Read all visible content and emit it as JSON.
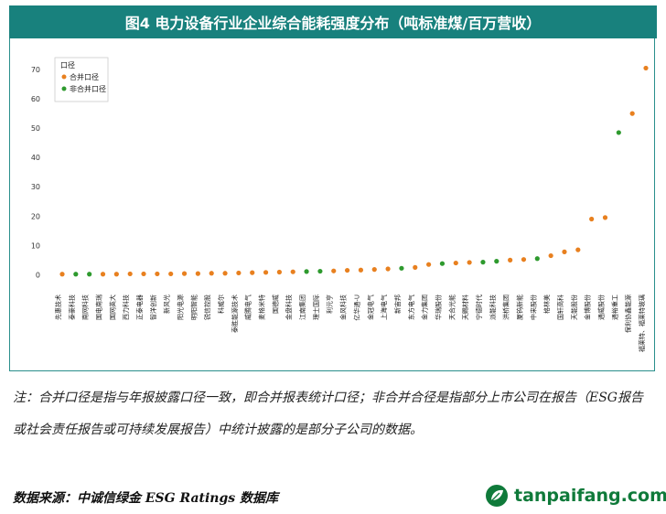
{
  "chart_data": {
    "type": "scatter",
    "title": "图4 电力设备行业企业综合能耗强度分布（吨标准煤/百万营收）",
    "xlabel": "",
    "ylabel": "",
    "ylim": [
      -3,
      75
    ],
    "yticks": [
      0,
      10,
      20,
      30,
      40,
      50,
      60,
      70
    ],
    "legend": {
      "title": "口径",
      "position": "top-left",
      "entries": [
        {
          "name": "合并口径",
          "color": "#e8801f"
        },
        {
          "name": "非合并口径",
          "color": "#2e9a2e"
        }
      ]
    },
    "categories": [
      "先惠技术",
      "泰豪科技",
      "南网科技",
      "国电南瑞",
      "国网英大",
      "西力科技",
      "正泰电器",
      "智洋创新",
      "新风光",
      "阳光电源",
      "明阳智能",
      "锐信控股",
      "科威尔",
      "泰胜能源技术",
      "威腾电气",
      "麦格米特",
      "国德威",
      "金盘科技",
      "江南集团",
      "理士国际",
      "利元亨",
      "金风科技",
      "亿华通-U",
      "金冠电气",
      "上海电气",
      "新宙邦",
      "东方电气",
      "金力集团",
      "华瑞股份",
      "天合光能",
      "天赐材料",
      "宁德时代",
      "派能科技",
      "洪桥集团",
      "厦钨新能",
      "中来股份",
      "格林美",
      "国轩高科",
      "天能股份",
      "金博股份",
      "通威股份",
      "通裕重工",
      "保利协鑫能源",
      "福莱特、福莱特玻璃"
    ],
    "series": [
      {
        "name": "合并口径",
        "points": [
          {
            "x": "先惠技术",
            "y": 0.2
          },
          {
            "x": "国电南瑞",
            "y": 0.2
          },
          {
            "x": "国网英大",
            "y": 0.2
          },
          {
            "x": "西力科技",
            "y": 0.3
          },
          {
            "x": "正泰电器",
            "y": 0.3
          },
          {
            "x": "智洋创新",
            "y": 0.3
          },
          {
            "x": "新风光",
            "y": 0.3
          },
          {
            "x": "阳光电源",
            "y": 0.4
          },
          {
            "x": "明阳智能",
            "y": 0.4
          },
          {
            "x": "锐信控股",
            "y": 0.5
          },
          {
            "x": "科威尔",
            "y": 0.5
          },
          {
            "x": "泰胜能源技术",
            "y": 0.6
          },
          {
            "x": "威腾电气",
            "y": 0.7
          },
          {
            "x": "麦格米特",
            "y": 0.8
          },
          {
            "x": "国德威",
            "y": 0.9
          },
          {
            "x": "金盘科技",
            "y": 1.0
          },
          {
            "x": "利元亨",
            "y": 1.3
          },
          {
            "x": "金风科技",
            "y": 1.5
          },
          {
            "x": "亿华通-U",
            "y": 1.6
          },
          {
            "x": "金冠电气",
            "y": 1.8
          },
          {
            "x": "上海电气",
            "y": 2.0
          },
          {
            "x": "东方电气",
            "y": 2.5
          },
          {
            "x": "金力集团",
            "y": 3.5
          },
          {
            "x": "天合光能",
            "y": 4.0
          },
          {
            "x": "天赐材料",
            "y": 4.2
          },
          {
            "x": "洪桥集团",
            "y": 5.0
          },
          {
            "x": "厦钨新能",
            "y": 5.2
          },
          {
            "x": "格林美",
            "y": 6.5
          },
          {
            "x": "国轩高科",
            "y": 7.8
          },
          {
            "x": "天能股份",
            "y": 8.5
          },
          {
            "x": "金博股份",
            "y": 19.0
          },
          {
            "x": "通威股份",
            "y": 19.5
          },
          {
            "x": "保利协鑫能源",
            "y": 55.0
          },
          {
            "x": "福莱特、福莱特玻璃",
            "y": 70.5
          }
        ]
      },
      {
        "name": "非合并口径",
        "points": [
          {
            "x": "泰豪科技",
            "y": 0.2
          },
          {
            "x": "南网科技",
            "y": 0.2
          },
          {
            "x": "江南集团",
            "y": 1.1
          },
          {
            "x": "理士国际",
            "y": 1.2
          },
          {
            "x": "新宙邦",
            "y": 2.2
          },
          {
            "x": "华瑞股份",
            "y": 3.8
          },
          {
            "x": "宁德时代",
            "y": 4.3
          },
          {
            "x": "派能科技",
            "y": 4.6
          },
          {
            "x": "中来股份",
            "y": 5.5
          },
          {
            "x": "通裕重工",
            "y": 48.5
          }
        ]
      }
    ]
  },
  "note": "注：合并口径是指与年报披露口径一致，即合并报表统计口径；非合并合径是指部分上市公司在报告（ESG报告或社会责任报告或可持续发展报告）中统计披露的是部分子公司的数据。",
  "source": "数据来源：中诚信绿金 ESG Ratings 数据库",
  "logo": {
    "text": "tanpaifang.com",
    "icon": "leaf-icon",
    "color": "#0f7a3a"
  }
}
